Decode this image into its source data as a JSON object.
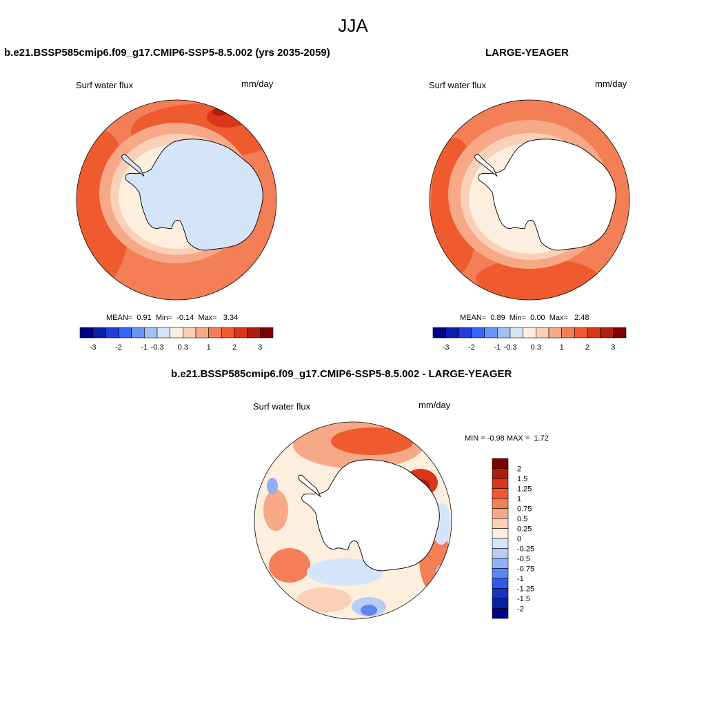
{
  "season": "JJA",
  "panels": [
    {
      "title": "b.e21.BSSP585cmip6.f09_g17.CMIP6-SSP5-8.5.002 (yrs 2035-2059)",
      "variable": "Surf water flux",
      "units": "mm/day",
      "stats": {
        "mean_label": "MEAN=",
        "mean": "0.91",
        "min_label": "Min=",
        "min": "-0.14",
        "max_label": "Max=",
        "max": "3.34"
      }
    },
    {
      "title": "LARGE-YEAGER",
      "variable": "Surf water flux",
      "units": "mm/day",
      "stats": {
        "mean_label": "MEAN=",
        "mean": "0.89",
        "min_label": "Min=",
        "min": "0.00",
        "max_label": "Max=",
        "max": "2.48"
      }
    }
  ],
  "colorbar": {
    "colors": [
      "#00008b",
      "#0a1fa8",
      "#1f40d6",
      "#3366ff",
      "#6b93f5",
      "#a3bff7",
      "#d4e5fa",
      "#fdeede",
      "#fbd0b8",
      "#f7a987",
      "#f47e56",
      "#ef5a2f",
      "#d9361a",
      "#b01e0b",
      "#800000"
    ],
    "ticks": [
      "-3",
      "-2",
      "-1",
      "-0.3",
      "0.3",
      "1",
      "2",
      "3"
    ]
  },
  "diff": {
    "title": "b.e21.BSSP585cmip6.f09_g17.CMIP6-SSP5-8.5.002 - LARGE-YEAGER",
    "variable": "Surf water flux",
    "units": "mm/day",
    "min_label": "MIN =",
    "min": "-0.98",
    "max_label": "MAX =",
    "max": "1.72",
    "colors": [
      "#800000",
      "#b01e0b",
      "#d9361a",
      "#ef5a2f",
      "#f47e56",
      "#f7a987",
      "#fbd0b8",
      "#fdeede",
      "#d4e5fa",
      "#b7cdf7",
      "#8fb0f5",
      "#5c85f0",
      "#2f5bea",
      "#1432c8",
      "#0a1fa8",
      "#00008b"
    ],
    "levels": [
      "2",
      "1.5",
      "1.25",
      "1",
      "0.75",
      "0.5",
      "0.25",
      "0",
      "-0.25",
      "-0.5",
      "-0.75",
      "-1",
      "-1.25",
      "-1.5",
      "-2"
    ]
  },
  "palette": {
    "land": "#ffffff",
    "coast": "#000000",
    "ice_shelf_tint": "#dbe9fb"
  }
}
